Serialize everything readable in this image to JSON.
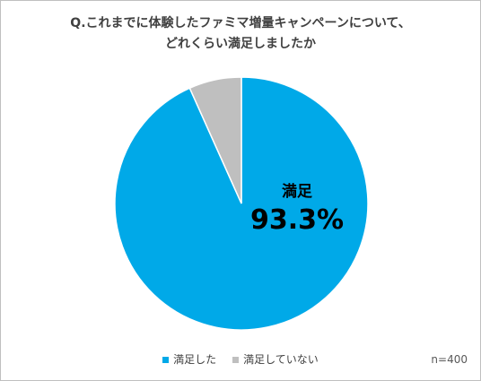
{
  "chart_data": {
    "type": "pie",
    "title_lines": [
      "Q.これまでに体験したファミマ増量キャンペーンについて、",
      "どれくらい満足しましたか"
    ],
    "categories": [
      "満足した",
      "満足していない"
    ],
    "values": [
      93.3,
      6.7
    ],
    "colors": [
      "#00a9e8",
      "#bfbfbf"
    ],
    "data_label": {
      "category": "満足",
      "value_text": "93.3%"
    },
    "legend_position": "bottom",
    "sample_note": "n=400"
  }
}
